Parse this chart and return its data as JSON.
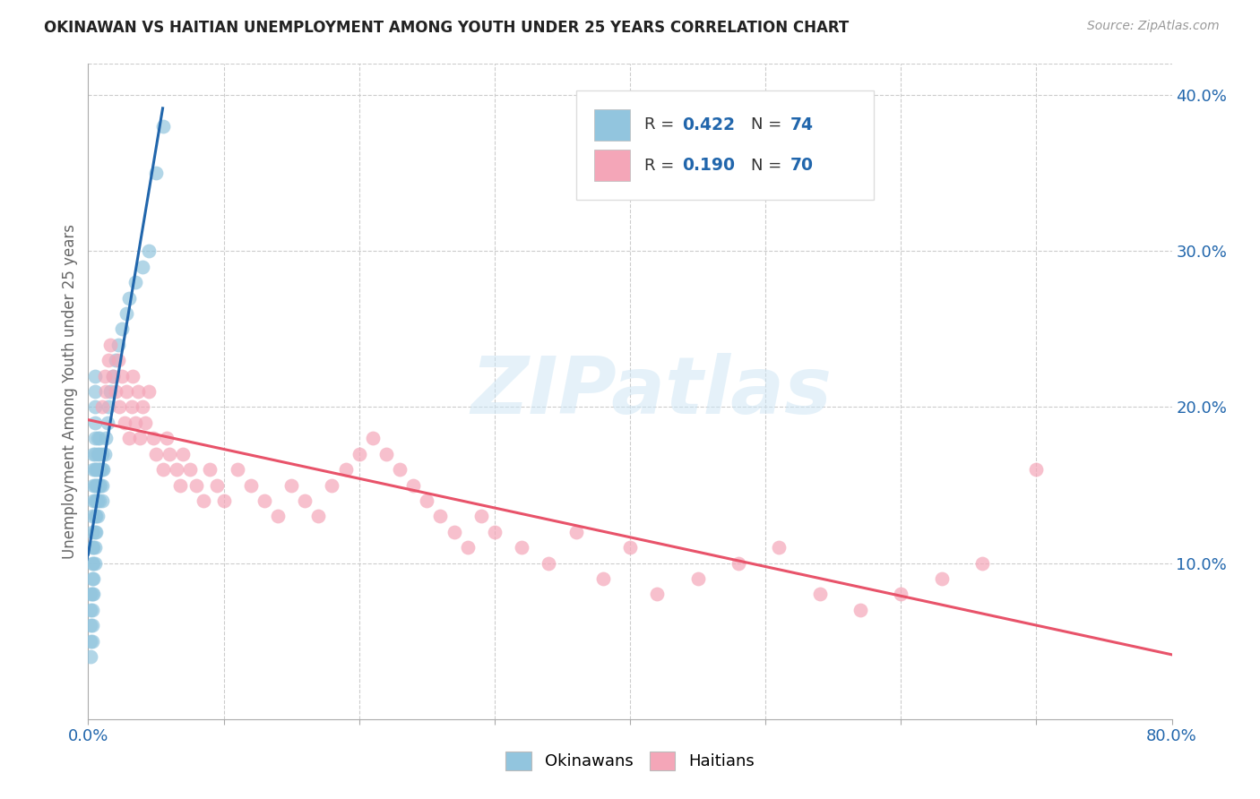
{
  "title": "OKINAWAN VS HAITIAN UNEMPLOYMENT AMONG YOUTH UNDER 25 YEARS CORRELATION CHART",
  "source": "Source: ZipAtlas.com",
  "ylabel": "Unemployment Among Youth under 25 years",
  "xlim": [
    0.0,
    0.8
  ],
  "ylim": [
    0.0,
    0.42
  ],
  "xtick_vals": [
    0.0,
    0.1,
    0.2,
    0.3,
    0.4,
    0.5,
    0.6,
    0.7,
    0.8
  ],
  "xticklabels": [
    "0.0%",
    "",
    "",
    "",
    "",
    "",
    "",
    "",
    "80.0%"
  ],
  "ytick_vals": [
    0.1,
    0.2,
    0.3,
    0.4
  ],
  "yticklabels": [
    "10.0%",
    "20.0%",
    "30.0%",
    "40.0%"
  ],
  "color_blue": "#92c5de",
  "color_pink": "#f4a6b8",
  "color_line_blue": "#2166ac",
  "color_line_pink": "#e8536a",
  "color_blue_text": "#2166ac",
  "color_grid": "#cccccc",
  "R_ok": "0.422",
  "N_ok": "74",
  "R_ht": "0.190",
  "N_ht": "70",
  "legend_labels": [
    "Okinawans",
    "Haitians"
  ],
  "watermark": "ZIPatlas",
  "okinawan_x": [
    0.002,
    0.002,
    0.002,
    0.002,
    0.002,
    0.003,
    0.003,
    0.003,
    0.003,
    0.003,
    0.003,
    0.003,
    0.003,
    0.003,
    0.004,
    0.004,
    0.004,
    0.004,
    0.004,
    0.004,
    0.004,
    0.004,
    0.005,
    0.005,
    0.005,
    0.005,
    0.005,
    0.005,
    0.005,
    0.005,
    0.005,
    0.005,
    0.005,
    0.005,
    0.005,
    0.006,
    0.006,
    0.006,
    0.006,
    0.006,
    0.007,
    0.007,
    0.007,
    0.007,
    0.007,
    0.007,
    0.008,
    0.008,
    0.008,
    0.008,
    0.008,
    0.009,
    0.009,
    0.01,
    0.01,
    0.01,
    0.01,
    0.011,
    0.012,
    0.013,
    0.014,
    0.015,
    0.016,
    0.018,
    0.02,
    0.022,
    0.025,
    0.028,
    0.03,
    0.035,
    0.04,
    0.045,
    0.05,
    0.055
  ],
  "okinawan_y": [
    0.04,
    0.05,
    0.06,
    0.07,
    0.08,
    0.05,
    0.06,
    0.07,
    0.08,
    0.09,
    0.1,
    0.11,
    0.12,
    0.13,
    0.08,
    0.09,
    0.1,
    0.11,
    0.14,
    0.15,
    0.16,
    0.17,
    0.1,
    0.11,
    0.12,
    0.13,
    0.14,
    0.15,
    0.16,
    0.17,
    0.18,
    0.19,
    0.2,
    0.21,
    0.22,
    0.12,
    0.13,
    0.14,
    0.15,
    0.16,
    0.13,
    0.14,
    0.15,
    0.16,
    0.17,
    0.18,
    0.14,
    0.15,
    0.16,
    0.17,
    0.18,
    0.15,
    0.16,
    0.14,
    0.15,
    0.16,
    0.17,
    0.16,
    0.17,
    0.18,
    0.19,
    0.2,
    0.21,
    0.22,
    0.23,
    0.24,
    0.25,
    0.26,
    0.27,
    0.28,
    0.29,
    0.3,
    0.35,
    0.38
  ],
  "haitian_x": [
    0.01,
    0.012,
    0.013,
    0.015,
    0.016,
    0.018,
    0.02,
    0.022,
    0.023,
    0.025,
    0.027,
    0.028,
    0.03,
    0.032,
    0.033,
    0.035,
    0.037,
    0.038,
    0.04,
    0.042,
    0.045,
    0.048,
    0.05,
    0.055,
    0.058,
    0.06,
    0.065,
    0.068,
    0.07,
    0.075,
    0.08,
    0.085,
    0.09,
    0.095,
    0.1,
    0.11,
    0.12,
    0.13,
    0.14,
    0.15,
    0.16,
    0.17,
    0.18,
    0.19,
    0.2,
    0.21,
    0.22,
    0.23,
    0.24,
    0.25,
    0.26,
    0.27,
    0.28,
    0.29,
    0.3,
    0.32,
    0.34,
    0.36,
    0.38,
    0.4,
    0.42,
    0.45,
    0.48,
    0.51,
    0.54,
    0.57,
    0.6,
    0.63,
    0.66,
    0.7
  ],
  "haitian_y": [
    0.2,
    0.22,
    0.21,
    0.23,
    0.24,
    0.22,
    0.21,
    0.23,
    0.2,
    0.22,
    0.19,
    0.21,
    0.18,
    0.2,
    0.22,
    0.19,
    0.21,
    0.18,
    0.2,
    0.19,
    0.21,
    0.18,
    0.17,
    0.16,
    0.18,
    0.17,
    0.16,
    0.15,
    0.17,
    0.16,
    0.15,
    0.14,
    0.16,
    0.15,
    0.14,
    0.16,
    0.15,
    0.14,
    0.13,
    0.15,
    0.14,
    0.13,
    0.15,
    0.16,
    0.17,
    0.18,
    0.17,
    0.16,
    0.15,
    0.14,
    0.13,
    0.12,
    0.11,
    0.13,
    0.12,
    0.11,
    0.1,
    0.12,
    0.09,
    0.11,
    0.08,
    0.09,
    0.1,
    0.11,
    0.08,
    0.07,
    0.08,
    0.09,
    0.1,
    0.16
  ]
}
